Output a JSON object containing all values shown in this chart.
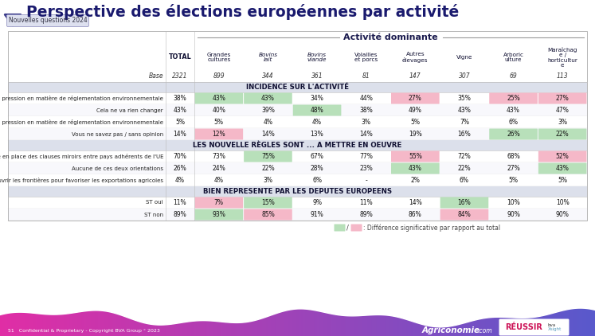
{
  "title": "Perspective des élections européennes par activité",
  "subtitle_badge": "Nouvelles questions 2024",
  "header_group": "Activité dominante",
  "col_headers": [
    "",
    "TOTAL",
    "Grandes\ncultures",
    "Bovins\nlait",
    "Bovins\nviande",
    "Volailles\net porcs",
    "Autres\nélevages",
    "Vigne",
    "Arboric\nulture",
    "Maraîchag\ne /\nhorticultur\ne"
  ],
  "base_row": [
    "Base",
    "2321",
    "899",
    "344",
    "361",
    "81",
    "147",
    "307",
    "69",
    "113"
  ],
  "sections": [
    {
      "header": "INCIDENCE SUR L'ACTIVITÉ",
      "rows": [
        {
          "label": "Plus de pression en matière de réglementation environnementale",
          "values": [
            "38%",
            "43%",
            "43%",
            "34%",
            "44%",
            "27%",
            "35%",
            "25%",
            "27%"
          ],
          "highlights": [
            {
              "col": 1,
              "color": "green"
            },
            {
              "col": 2,
              "color": "green"
            },
            {
              "col": 5,
              "color": "pink"
            },
            {
              "col": 7,
              "color": "pink"
            },
            {
              "col": 8,
              "color": "pink"
            }
          ]
        },
        {
          "label": "Cela ne va rien changer",
          "values": [
            "43%",
            "40%",
            "39%",
            "48%",
            "38%",
            "49%",
            "43%",
            "43%",
            "47%"
          ],
          "highlights": [
            {
              "col": 3,
              "color": "green"
            }
          ]
        },
        {
          "label": "Moins de pression en matière de réglementation environnementale",
          "values": [
            "5%",
            "5%",
            "4%",
            "4%",
            "3%",
            "5%",
            "7%",
            "6%",
            "3%"
          ],
          "highlights": []
        },
        {
          "label": "Vous ne savez pas / sans opinion",
          "values": [
            "14%",
            "12%",
            "14%",
            "13%",
            "14%",
            "19%",
            "16%",
            "26%",
            "22%"
          ],
          "highlights": [
            {
              "col": 1,
              "color": "pink"
            },
            {
              "col": 7,
              "color": "green"
            },
            {
              "col": 8,
              "color": "green"
            }
          ]
        }
      ]
    },
    {
      "header": "LES NOUVELLE RÈGLES SONT ... A METTRE EN OEUVRE",
      "rows": [
        {
          "label": "Mettre en place des clauses miroirs entre pays adhérents de l'UE",
          "values": [
            "70%",
            "73%",
            "75%",
            "67%",
            "77%",
            "55%",
            "72%",
            "68%",
            "52%"
          ],
          "highlights": [
            {
              "col": 2,
              "color": "green"
            },
            {
              "col": 5,
              "color": "pink"
            },
            {
              "col": 8,
              "color": "pink"
            }
          ]
        },
        {
          "label": "Aucune de ces deux orientations",
          "values": [
            "26%",
            "24%",
            "22%",
            "28%",
            "23%",
            "43%",
            "22%",
            "27%",
            "43%"
          ],
          "highlights": [
            {
              "col": 5,
              "color": "green"
            },
            {
              "col": 8,
              "color": "green"
            }
          ]
        },
        {
          "label": "Ouvrir les frontières pour favoriser les exportations agricoles",
          "values": [
            "4%",
            "4%",
            "3%",
            "6%",
            "-",
            "2%",
            "6%",
            "5%",
            "5%"
          ],
          "highlights": []
        }
      ]
    },
    {
      "header": "BIEN REPRESENTE PAR LES DEPUTES EUROPEENS",
      "rows": [
        {
          "label": "ST oui",
          "values": [
            "11%",
            "7%",
            "15%",
            "9%",
            "11%",
            "14%",
            "16%",
            "10%",
            "10%"
          ],
          "highlights": [
            {
              "col": 1,
              "color": "pink"
            },
            {
              "col": 2,
              "color": "green"
            },
            {
              "col": 6,
              "color": "green"
            }
          ]
        },
        {
          "label": "ST non",
          "values": [
            "89%",
            "93%",
            "85%",
            "91%",
            "89%",
            "86%",
            "84%",
            "90%",
            "90%"
          ],
          "highlights": [
            {
              "col": 1,
              "color": "green"
            },
            {
              "col": 2,
              "color": "pink"
            },
            {
              "col": 6,
              "color": "pink"
            }
          ]
        }
      ]
    }
  ],
  "green_highlight": "#b8e0ba",
  "pink_highlight": "#f5b8c8",
  "section_bg": "#dce0eb",
  "title_color": "#1a1a6e",
  "badge_bg": "#dde0ef",
  "badge_text": "#334",
  "icon_purple": "#6a2a6a",
  "icon_outline": "#3a3a8a",
  "footer_left_text": "51   Confidential & Proprietary - Copyright BVA Group ° 2023",
  "footer_agri_text": "Agriconomie",
  "footer_agri_dot": ".com",
  "line_color": "#bbbbbb"
}
